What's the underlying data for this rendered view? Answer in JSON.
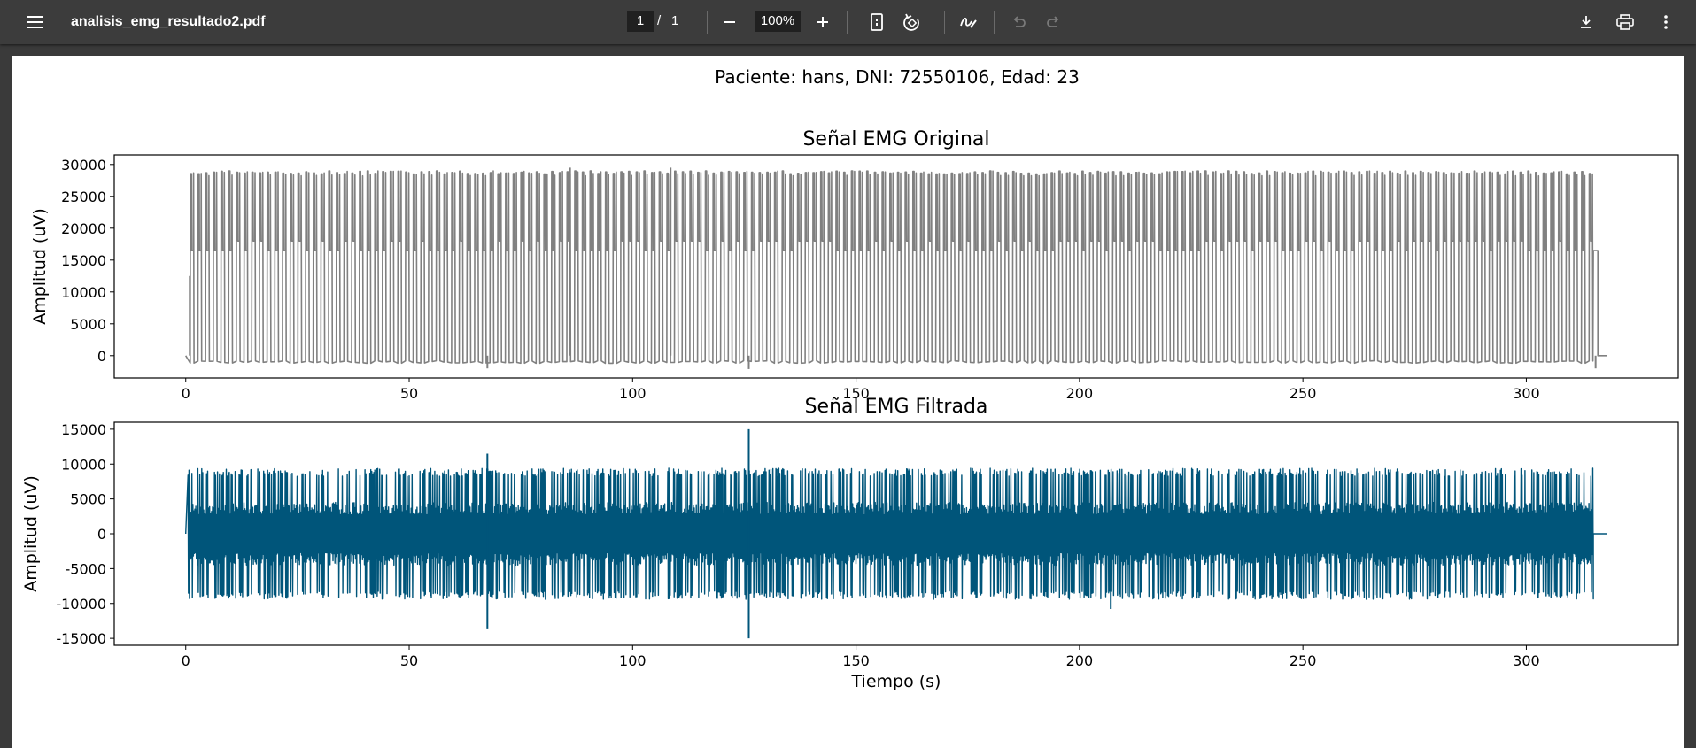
{
  "toolbar": {
    "file_name": "analisis_emg_resultado2.pdf",
    "current_page": "1",
    "page_separator": "/",
    "total_pages": "1",
    "zoom": "100%",
    "icons": [
      "menu-icon",
      "zoom-out-icon",
      "zoom-in-icon",
      "fit-page-icon",
      "rotate-icon",
      "annotate-icon",
      "undo-icon",
      "redo-icon",
      "download-icon",
      "print-icon",
      "more-icon"
    ]
  },
  "document": {
    "header": "Paciente: hans, DNI: 72550106, Edad: 23"
  },
  "chart_data": [
    {
      "type": "line",
      "title": "Señal EMG Original",
      "xlabel": "",
      "ylabel": "Amplitud (uV)",
      "xlim": [
        -16,
        334
      ],
      "ylim": [
        -3500,
        31500
      ],
      "x_ticks": [
        0,
        50,
        100,
        150,
        200,
        250,
        300
      ],
      "y_ticks": [
        0,
        5000,
        10000,
        15000,
        20000,
        25000,
        30000
      ],
      "color": "#808080",
      "series": [
        {
          "x_range": [
            0,
            318
          ],
          "baseline": 0,
          "pulse_period_s": 1.72,
          "pulse_max": 29000,
          "pulse_min": -800,
          "plateau_levels": [
            16500,
            18000
          ],
          "spikes": [
            {
              "x": 0.9,
              "value": 12500
            },
            {
              "x": 67.5,
              "value": -2000
            },
            {
              "x": 86.0,
              "value": 29500
            },
            {
              "x": 108.5,
              "value": 29500
            },
            {
              "x": 126.0,
              "value": -2100
            },
            {
              "x": 315.5,
              "value": -2000
            }
          ]
        }
      ],
      "grid": false,
      "legend": "none"
    },
    {
      "type": "line",
      "title": "Señal EMG Filtrada",
      "xlabel": "Tiempo (s)",
      "ylabel": "Amplitud (uV)",
      "xlim": [
        -16,
        334
      ],
      "ylim": [
        -16000,
        16000
      ],
      "x_ticks": [
        0,
        50,
        100,
        150,
        200,
        250,
        300
      ],
      "y_ticks": [
        -15000,
        -10000,
        -5000,
        0,
        5000,
        10000,
        15000
      ],
      "color": "#00557a",
      "series": [
        {
          "x_range": [
            0,
            318
          ],
          "baseline": 0,
          "envelope_max": 9400,
          "envelope_min": -9400,
          "dense_band": [
            -4500,
            4500
          ],
          "spikes": [
            {
              "x": 67.5,
              "value": 11500
            },
            {
              "x": 67.5,
              "value": -13700
            },
            {
              "x": 126.0,
              "value": 15000
            },
            {
              "x": 126.0,
              "value": -15000
            },
            {
              "x": 207.0,
              "value": -10800
            }
          ]
        }
      ],
      "grid": false,
      "legend": "none"
    }
  ]
}
